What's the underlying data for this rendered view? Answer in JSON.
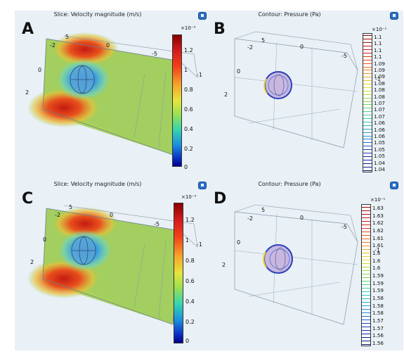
{
  "panels": [
    {
      "id": "A",
      "title": "Slice: Velocity magnitude (m/s)",
      "exponent": "×10⁻³",
      "ticks": [
        "1.2",
        "1",
        "0.8",
        "0.6",
        "0.4",
        "0.2",
        "0"
      ],
      "axis_numbers": [
        "5",
        "-2",
        "0",
        "-5",
        "0",
        "2",
        "-1"
      ]
    },
    {
      "id": "B",
      "title": "Contour: Pressure (Pa)",
      "exponent": "×10⁻¹",
      "ticks": [
        "1.1",
        "1.1",
        "1.1",
        "1.1",
        "1.09",
        "1.09",
        "1.09",
        "1.08",
        "1.08",
        "1.08",
        "1.07",
        "1.07",
        "1.07",
        "1.06",
        "1.06",
        "1.06",
        "1.05",
        "1.05",
        "1.05",
        "1.04",
        "1.04"
      ],
      "axis_numbers": [
        "5",
        "-2",
        "0",
        "-5",
        "0",
        "2",
        "-1"
      ]
    },
    {
      "id": "C",
      "title": "Slice: Velocity magnitude (m/s)",
      "exponent": "×10⁻³",
      "ticks": [
        "1.2",
        "1",
        "0.8",
        "0.6",
        "0.4",
        "0.2",
        "0"
      ],
      "axis_numbers": [
        "5",
        "-2",
        "0",
        "-5",
        "0",
        "2",
        "-1"
      ]
    },
    {
      "id": "D",
      "title": "Contour: Pressure (Pa)",
      "exponent": "×10⁻¹",
      "ticks": [
        "1.63",
        "1.63",
        "1.62",
        "1.62",
        "1.61",
        "1.61",
        "1.6",
        "1.6",
        "1.6",
        "1.59",
        "1.59",
        "1.59",
        "1.58",
        "1.58",
        "1.58",
        "1.57",
        "1.57",
        "1.56",
        "1.56"
      ],
      "axis_numbers": [
        "5",
        "-2",
        "0",
        "-5",
        "0",
        "2",
        "-1"
      ]
    }
  ],
  "colors": {
    "panel_bg": "#e9f0f6",
    "slice_green": "#9ccb52",
    "hot_red": "#d8361c",
    "cool_blue": "#3b8fd6",
    "icon_blue": "#2a6fc9"
  }
}
